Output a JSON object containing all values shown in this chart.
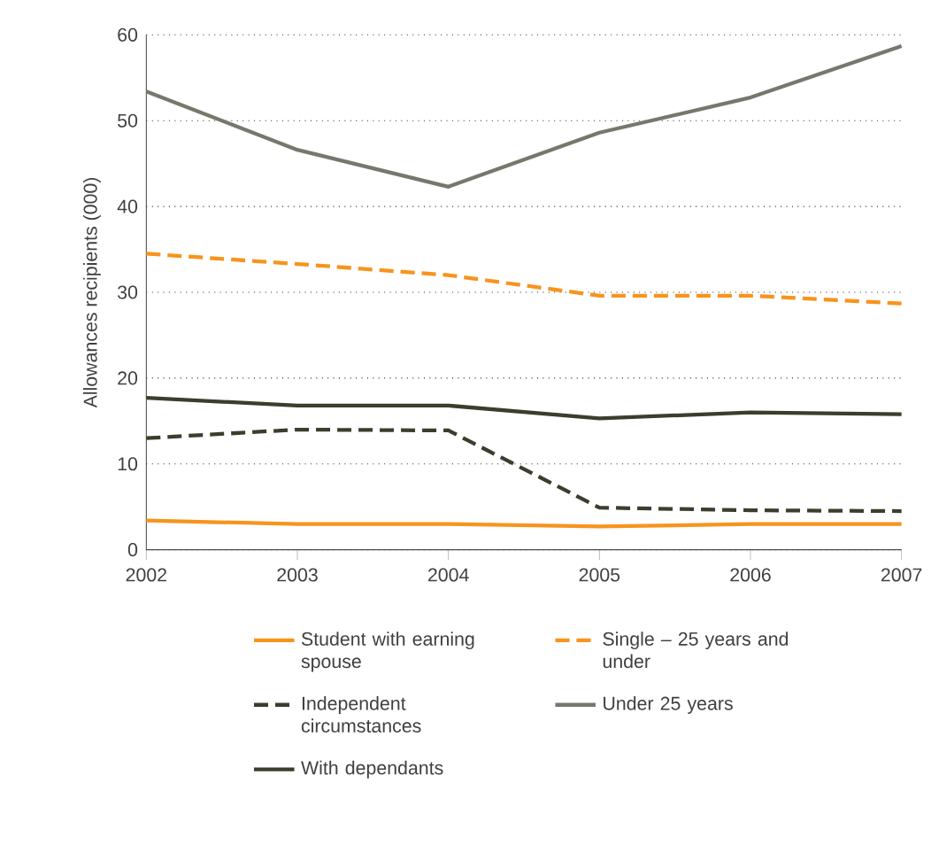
{
  "chart_data": {
    "type": "line",
    "ylabel": "Allowances recipients (000)",
    "x": [
      2002,
      2003,
      2004,
      2005,
      2006,
      2007
    ],
    "xlim": [
      2002,
      2007
    ],
    "xticks": [
      2002,
      2003,
      2004,
      2005,
      2006,
      2007
    ],
    "ylim": [
      0,
      60
    ],
    "yticks": [
      0,
      10,
      20,
      30,
      40,
      50,
      60
    ],
    "grid": "y",
    "legend": "bottom",
    "series": [
      {
        "name": "Student with earning spouse",
        "color": "#f7941d",
        "line_style": "solid",
        "values": [
          3.4,
          3.0,
          3.0,
          2.7,
          3.0,
          3.0
        ]
      },
      {
        "name": "Single – 25 years and under",
        "color": "#f7941d",
        "line_style": "dashed",
        "values": [
          34.5,
          33.3,
          32.0,
          29.6,
          29.6,
          28.7
        ]
      },
      {
        "name": "Independent circumstances",
        "color": "#3d3d2e",
        "line_style": "dashed",
        "values": [
          13.0,
          14.0,
          13.9,
          4.9,
          4.6,
          4.5
        ]
      },
      {
        "name": "Under 25 years",
        "color": "#77776c",
        "line_style": "solid",
        "values": [
          53.4,
          46.6,
          42.3,
          48.6,
          52.7,
          58.7
        ]
      },
      {
        "name": "With dependants",
        "color": "#3d3d2e",
        "line_style": "solid",
        "values": [
          17.7,
          16.8,
          16.8,
          15.3,
          16.0,
          15.8
        ]
      }
    ]
  }
}
